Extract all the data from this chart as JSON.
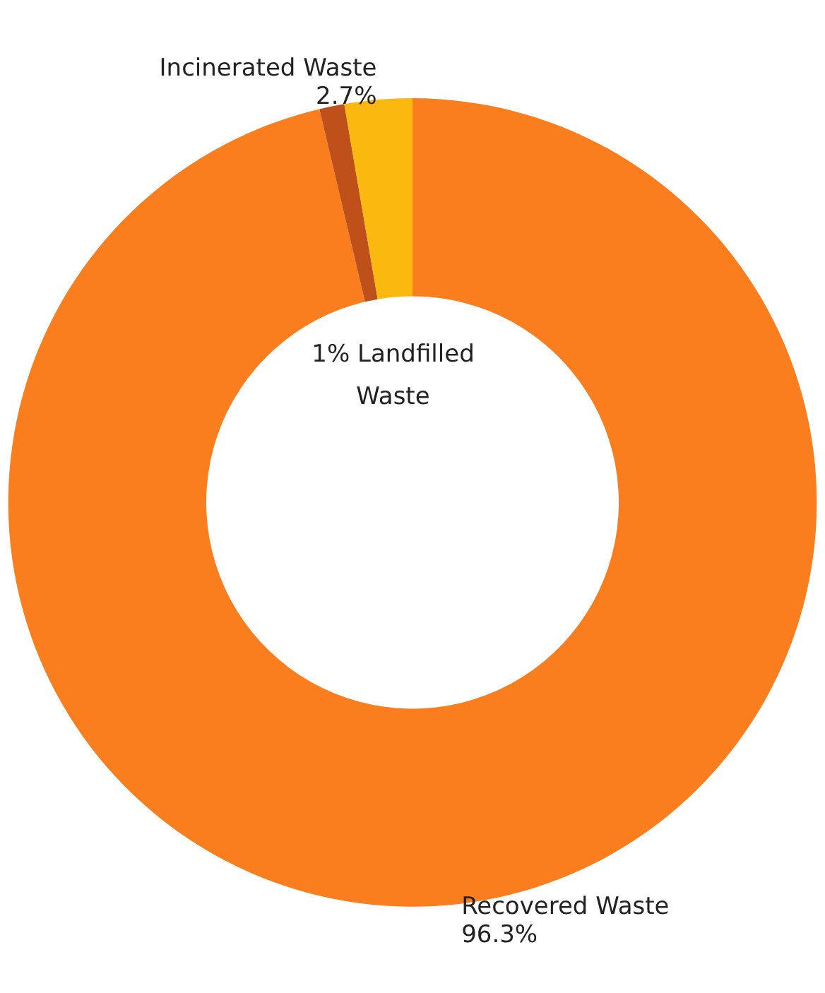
{
  "chart_data": {
    "type": "donut",
    "categories": [
      "Recovered Waste",
      "Landfilled Waste",
      "Incinerated Waste"
    ],
    "values": [
      96.3,
      1,
      2.7
    ],
    "colors": [
      "#fa7d1e",
      "#c0501a",
      "#fbb90f"
    ],
    "value_labels": [
      "96.3%",
      "1%",
      "2.7%"
    ],
    "legend": false
  }
}
